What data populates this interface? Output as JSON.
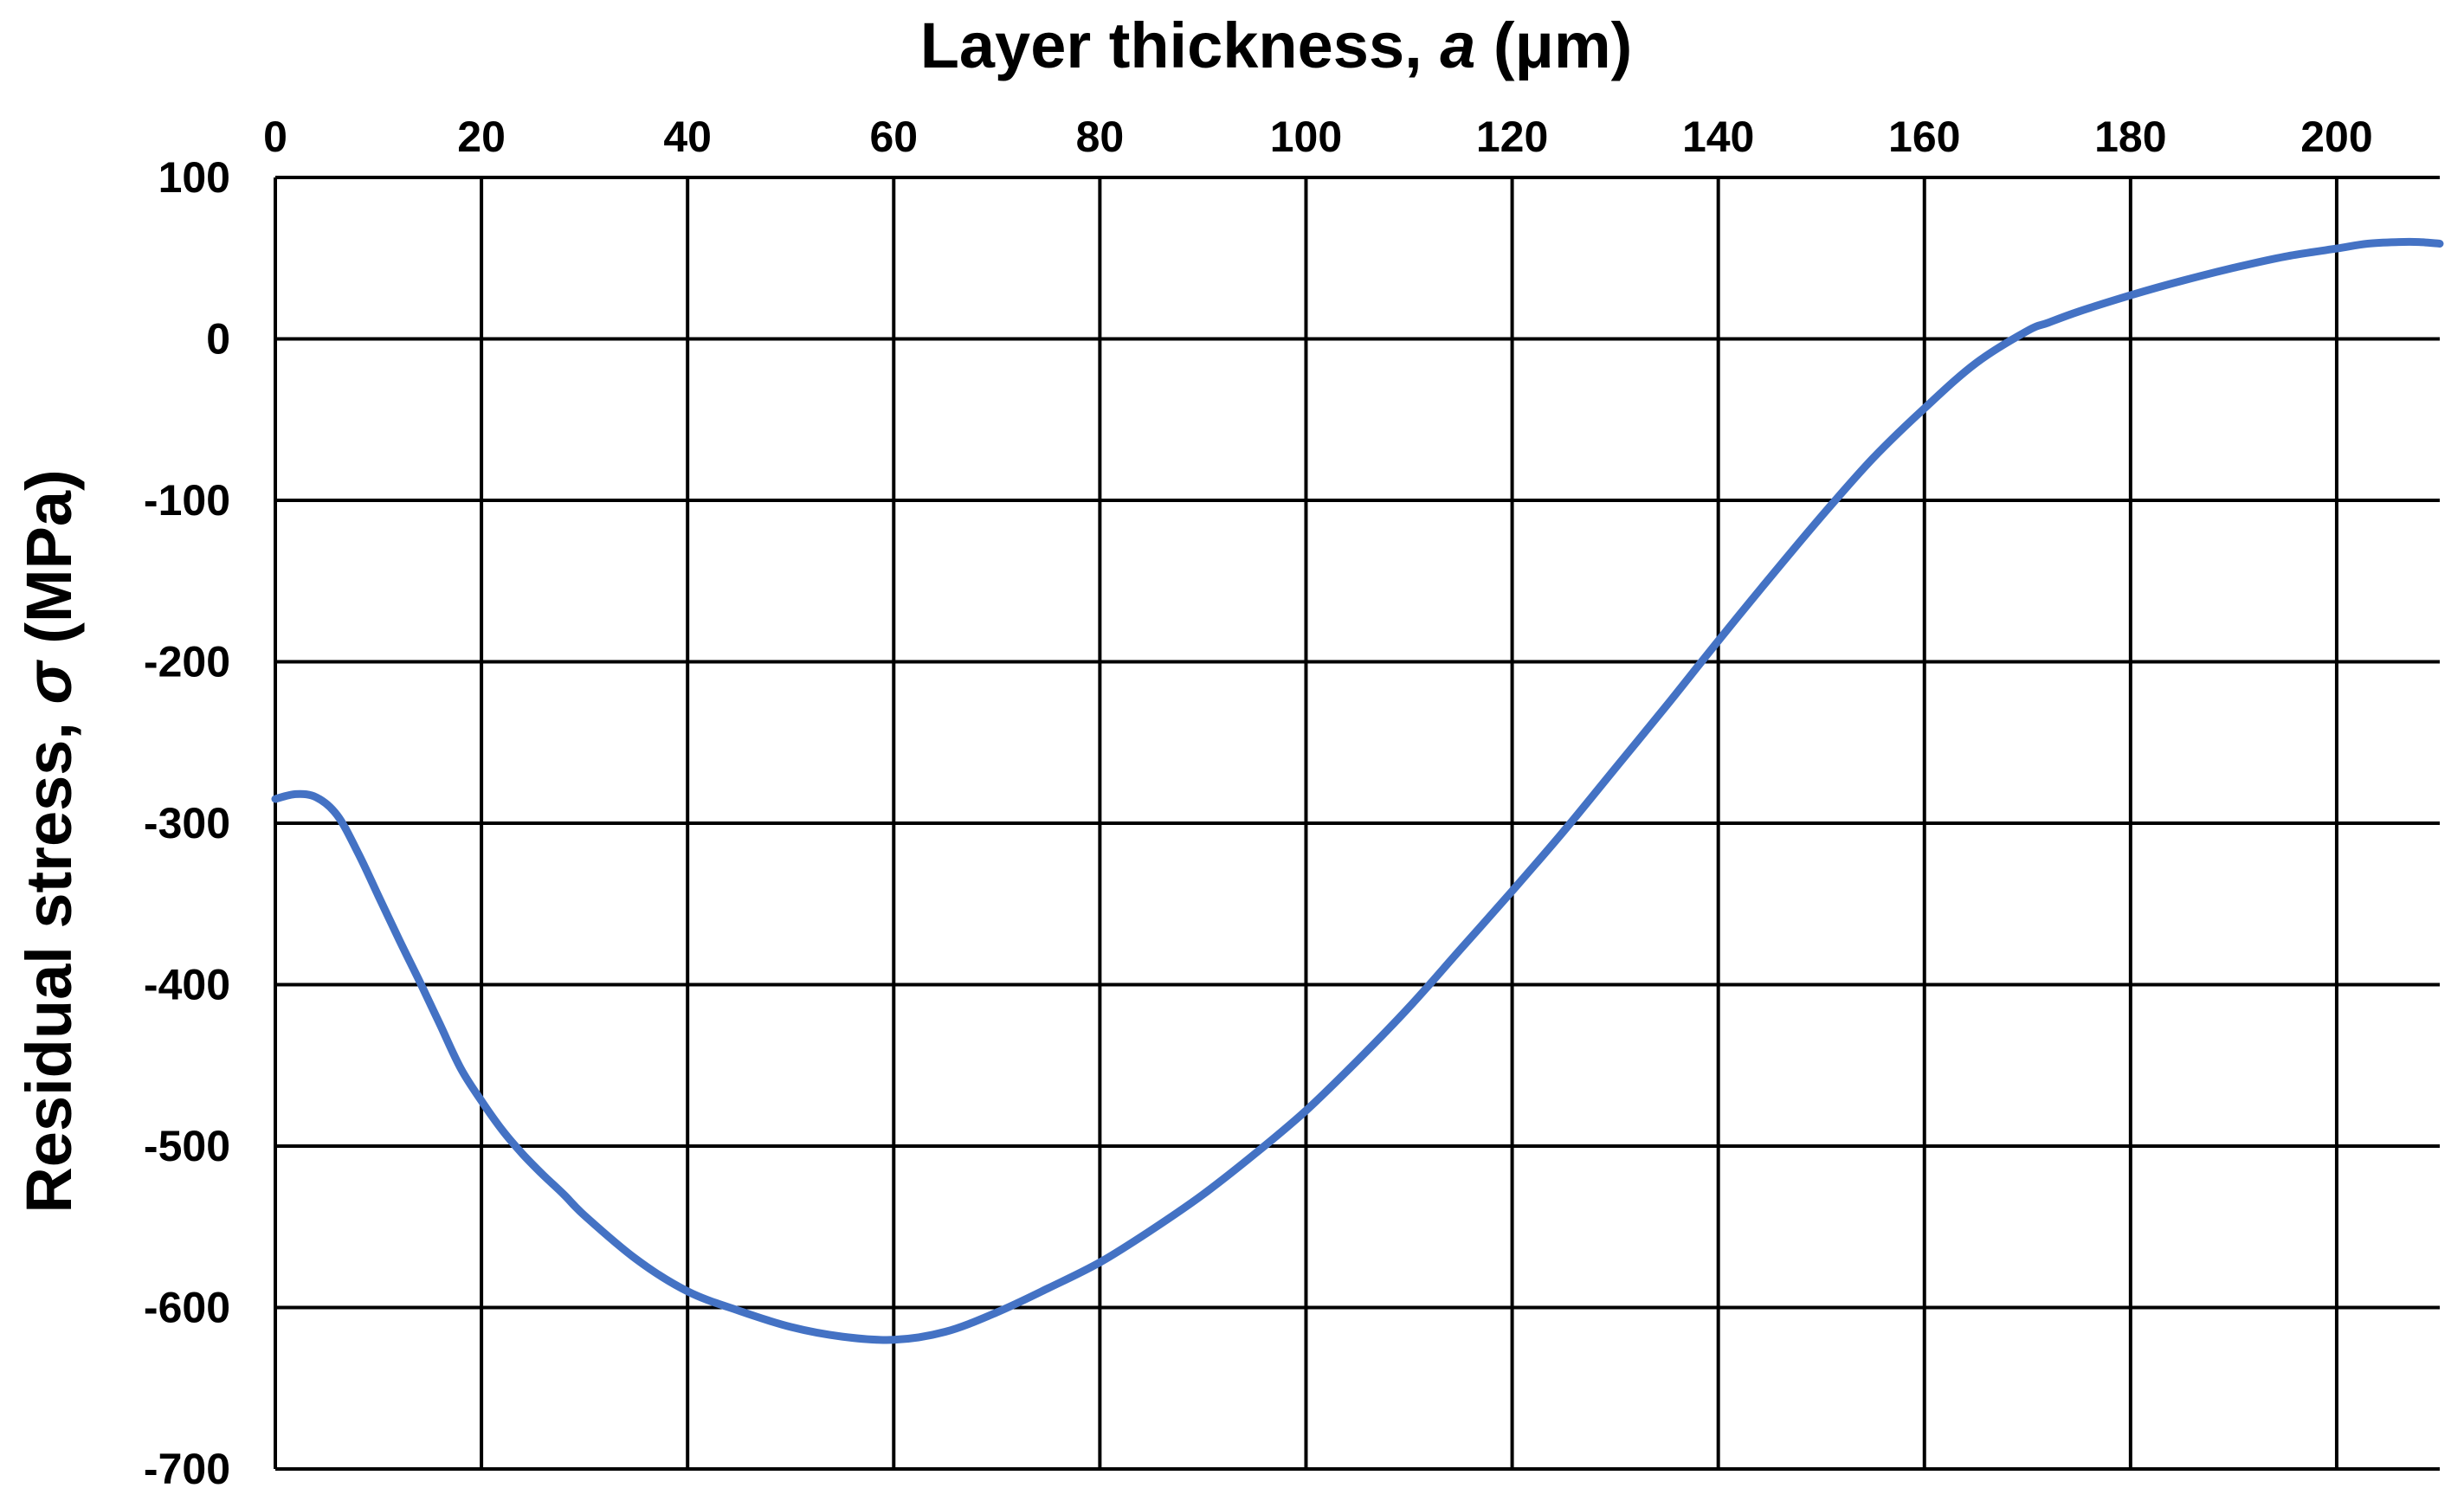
{
  "chart_data": {
    "type": "line",
    "title": "",
    "xlabel": {
      "main": "Layer thickness, ",
      "symbol": "a",
      "unit": " (μm)"
    },
    "ylabel": {
      "main": "Residual stress, ",
      "symbol": "σ",
      "unit": " (MPa)"
    },
    "xlim": [
      0,
      210
    ],
    "ylim": [
      -700,
      100
    ],
    "x_ticks": [
      0,
      20,
      40,
      60,
      80,
      100,
      120,
      140,
      160,
      180,
      200
    ],
    "y_ticks": [
      100,
      0,
      -100,
      -200,
      -300,
      -400,
      -500,
      -600,
      -700
    ],
    "x_axis_position": "top",
    "grid": true,
    "legend": "none",
    "series": [
      {
        "color": "#4472C4",
        "x": [
          0,
          2,
          4,
          6,
          8,
          10,
          12,
          14,
          16,
          18,
          20,
          22,
          24,
          26,
          28,
          30,
          35,
          40,
          45,
          50,
          55,
          60,
          65,
          70,
          75,
          80,
          85,
          90,
          95,
          100,
          105,
          110,
          115,
          120,
          125,
          130,
          135,
          140,
          145,
          150,
          155,
          160,
          165,
          170,
          172,
          175,
          180,
          185,
          190,
          195,
          200,
          203,
          206,
          208,
          210
        ],
        "y": [
          -285,
          -282,
          -284,
          -295,
          -318,
          -345,
          -372,
          -398,
          -425,
          -452,
          -472,
          -490,
          -505,
          -518,
          -530,
          -543,
          -570,
          -590,
          -602,
          -612,
          -618,
          -620,
          -615,
          -603,
          -588,
          -572,
          -552,
          -530,
          -505,
          -478,
          -447,
          -414,
          -378,
          -342,
          -305,
          -266,
          -227,
          -187,
          -148,
          -110,
          -74,
          -43,
          -15,
          5,
          10,
          17,
          27,
          36,
          44,
          51,
          56,
          59,
          60,
          60,
          59
        ]
      }
    ]
  }
}
